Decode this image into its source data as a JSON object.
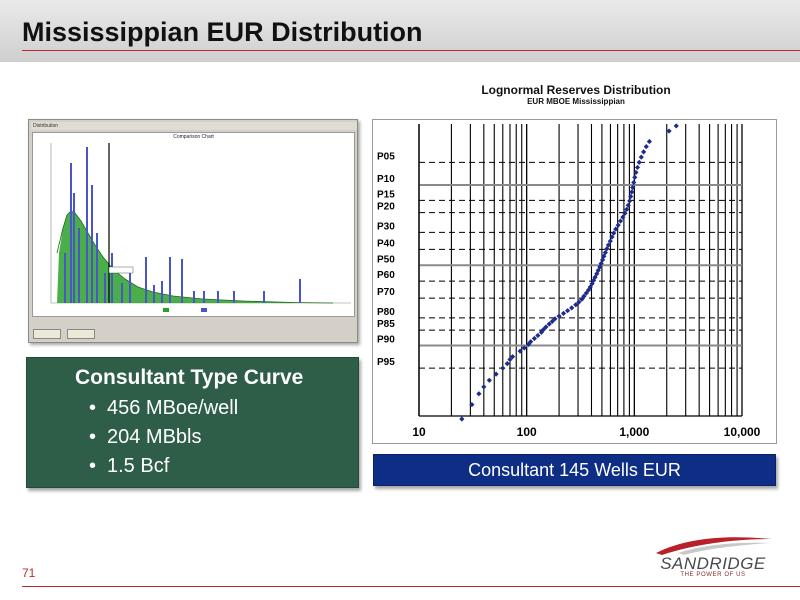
{
  "slide": {
    "title": "Mississippian EUR Distribution",
    "page_number": "71"
  },
  "green_box": {
    "heading": "Consultant Type Curve",
    "bullets": [
      "456 MBoe/well",
      "204 MBbls",
      "1.5 Bcf"
    ]
  },
  "caption": "Consultant 145 Wells EUR",
  "logo": {
    "word": "SANDRIDGE",
    "tagline": "THE POWER OF US"
  },
  "thumbnail": {
    "window_title": "Distribution",
    "chart_title": "Comparison Chart"
  },
  "colors": {
    "accent_red": "#c0262d",
    "green_box": "#2e5e47",
    "caption_blue": "#0e2d84",
    "marker_blue": "#1f2b8a"
  },
  "chart_data": {
    "type": "scatter",
    "title": "Lognormal Reserves Distribution",
    "subtitle": "EUR MBOE Mississippian",
    "x_scale": "log",
    "xlim": [
      10,
      10000
    ],
    "x_tick_labels": [
      "10",
      "100",
      "1,000",
      "10,000"
    ],
    "y_scale": "normal-probability",
    "y_tick_labels": [
      "P05",
      "P10",
      "P15",
      "P20",
      "P30",
      "P40",
      "P50",
      "P60",
      "P70",
      "P80",
      "P85",
      "P90",
      "P95"
    ],
    "y_tick_probabilities": [
      5,
      10,
      15,
      20,
      30,
      40,
      50,
      60,
      70,
      80,
      85,
      90,
      95
    ],
    "grid": true,
    "marker": "diamond",
    "points": [
      [
        25,
        99.3
      ],
      [
        31,
        98.7
      ],
      [
        36,
        98.0
      ],
      [
        40,
        97.4
      ],
      [
        45,
        96.7
      ],
      [
        52,
        95.9
      ],
      [
        60,
        95.0
      ],
      [
        66,
        94.2
      ],
      [
        70,
        93.4
      ],
      [
        74,
        92.8
      ],
      [
        87,
        91.5
      ],
      [
        95,
        90.7
      ],
      [
        104,
        89.7
      ],
      [
        109,
        88.9
      ],
      [
        118,
        87.9
      ],
      [
        127,
        86.9
      ],
      [
        137,
        85.8
      ],
      [
        143,
        84.8
      ],
      [
        151,
        83.8
      ],
      [
        162,
        82.6
      ],
      [
        173,
        81.5
      ],
      [
        183,
        80.4
      ],
      [
        200,
        79.2
      ],
      [
        220,
        77.9
      ],
      [
        240,
        76.6
      ],
      [
        262,
        75.2
      ],
      [
        286,
        73.6
      ],
      [
        305,
        72.2
      ],
      [
        325,
        70.7
      ],
      [
        340,
        69.0
      ],
      [
        358,
        67.2
      ],
      [
        375,
        65.4
      ],
      [
        390,
        63.6
      ],
      [
        405,
        61.6
      ],
      [
        418,
        59.6
      ],
      [
        432,
        57.6
      ],
      [
        448,
        55.4
      ],
      [
        462,
        53.3
      ],
      [
        478,
        51.1
      ],
      [
        492,
        48.9
      ],
      [
        507,
        46.6
      ],
      [
        521,
        44.3
      ],
      [
        538,
        42.0
      ],
      [
        556,
        39.6
      ],
      [
        575,
        37.3
      ],
      [
        598,
        35.0
      ],
      [
        620,
        32.6
      ],
      [
        644,
        30.4
      ],
      [
        672,
        28.2
      ],
      [
        708,
        26.1
      ],
      [
        744,
        24.0
      ],
      [
        782,
        22.1
      ],
      [
        818,
        20.3
      ],
      [
        850,
        18.6
      ],
      [
        878,
        16.9
      ],
      [
        905,
        15.2
      ],
      [
        925,
        13.6
      ],
      [
        945,
        12.1
      ],
      [
        965,
        10.7
      ],
      [
        988,
        9.3
      ],
      [
        1010,
        8.0
      ],
      [
        1035,
        6.9
      ],
      [
        1070,
        5.9
      ],
      [
        1110,
        5.0
      ],
      [
        1160,
        4.2
      ],
      [
        1220,
        3.5
      ],
      [
        1290,
        2.9
      ],
      [
        1380,
        2.4
      ],
      [
        2100,
        1.6
      ],
      [
        2450,
        1.3
      ]
    ]
  }
}
